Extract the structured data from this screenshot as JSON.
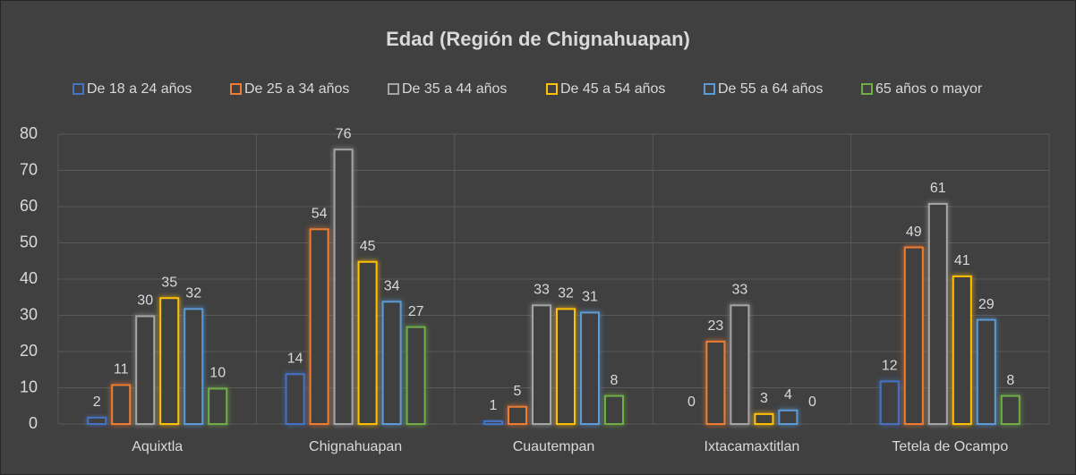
{
  "chart_data": {
    "type": "bar",
    "title": "Edad (Región de Chignahuapan)",
    "categories": [
      "Aquixtla",
      "Chignahuapan",
      "Cuautempan",
      "Ixtacamaxtitlan",
      "Tetela de Ocampo"
    ],
    "series": [
      {
        "name": "De 18 a 24 años",
        "color": "#4472c4",
        "values": [
          2,
          14,
          1,
          0,
          12
        ]
      },
      {
        "name": "De 25 a 34 años",
        "color": "#ed7d31",
        "values": [
          11,
          54,
          5,
          23,
          49
        ]
      },
      {
        "name": "De 35 a 44 años",
        "color": "#a5a5a5",
        "values": [
          30,
          76,
          33,
          33,
          61
        ]
      },
      {
        "name": "De 45 a 54 años",
        "color": "#ffc000",
        "values": [
          35,
          45,
          32,
          3,
          41
        ]
      },
      {
        "name": "De 55 a 64 años",
        "color": "#5b9bd5",
        "values": [
          32,
          34,
          31,
          4,
          29
        ]
      },
      {
        "name": "65 años o mayor",
        "color": "#70ad47",
        "values": [
          10,
          27,
          8,
          0,
          8
        ]
      }
    ],
    "ylim": [
      0,
      80
    ],
    "yticks": [
      0,
      10,
      20,
      30,
      40,
      50,
      60,
      70,
      80
    ],
    "grid": true,
    "legend": "top"
  }
}
